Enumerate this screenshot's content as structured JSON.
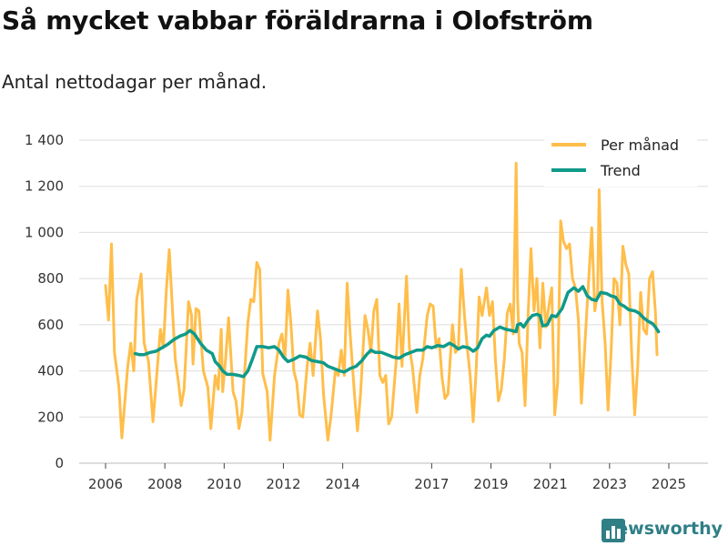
{
  "title": "Så mycket vabbar föräldrarna i Olofström",
  "subtitle": "Antal nettodagar per månad.",
  "brand": "Newsworthy",
  "colors": {
    "monthly": "#ffbe4a",
    "trend": "#0f9a8a",
    "grid": "#dddddd",
    "brand": "#2f7f86"
  },
  "chart_data": {
    "type": "line",
    "title": "Så mycket vabbar föräldrarna i Olofström",
    "subtitle": "Antal nettodagar per månad.",
    "xlabel": "",
    "ylabel": "",
    "xlim": [
      2006,
      2025.8
    ],
    "ylim": [
      0,
      1400
    ],
    "x_ticks": [
      2006,
      2008,
      2010,
      2012,
      2014,
      2017,
      2019,
      2021,
      2023,
      2025
    ],
    "x_tick_labels": [
      "2006",
      "2008",
      "2010",
      "2012",
      "2014",
      "2017",
      "2019",
      "2021",
      "2023",
      "2025"
    ],
    "y_ticks": [
      0,
      200,
      400,
      600,
      800,
      1000,
      1200,
      1400
    ],
    "y_tick_labels": [
      "0",
      "200",
      "400",
      "600",
      "800",
      "1 000",
      "1 200",
      "1 400"
    ],
    "grid": true,
    "legend": "top-right",
    "series": [
      {
        "name": "Per månad",
        "color": "#ffbe4a",
        "points": [
          [
            2006.0,
            770
          ],
          [
            2006.1,
            620
          ],
          [
            2006.2,
            950
          ],
          [
            2006.3,
            480
          ],
          [
            2006.45,
            330
          ],
          [
            2006.55,
            110
          ],
          [
            2006.75,
            420
          ],
          [
            2006.85,
            520
          ],
          [
            2006.95,
            400
          ],
          [
            2007.05,
            710
          ],
          [
            2007.2,
            820
          ],
          [
            2007.3,
            520
          ],
          [
            2007.45,
            440
          ],
          [
            2007.6,
            180
          ],
          [
            2007.7,
            340
          ],
          [
            2007.85,
            580
          ],
          [
            2007.95,
            500
          ],
          [
            2008.05,
            750
          ],
          [
            2008.15,
            925
          ],
          [
            2008.25,
            680
          ],
          [
            2008.35,
            450
          ],
          [
            2008.45,
            360
          ],
          [
            2008.55,
            250
          ],
          [
            2008.65,
            320
          ],
          [
            2008.8,
            700
          ],
          [
            2008.9,
            640
          ],
          [
            2008.95,
            430
          ],
          [
            2009.05,
            670
          ],
          [
            2009.15,
            660
          ],
          [
            2009.3,
            400
          ],
          [
            2009.45,
            330
          ],
          [
            2009.55,
            150
          ],
          [
            2009.7,
            380
          ],
          [
            2009.8,
            320
          ],
          [
            2009.9,
            580
          ],
          [
            2009.95,
            310
          ],
          [
            2010.05,
            450
          ],
          [
            2010.15,
            630
          ],
          [
            2010.3,
            310
          ],
          [
            2010.4,
            270
          ],
          [
            2010.5,
            150
          ],
          [
            2010.6,
            220
          ],
          [
            2010.8,
            610
          ],
          [
            2010.9,
            710
          ],
          [
            2011.0,
            700
          ],
          [
            2011.1,
            870
          ],
          [
            2011.2,
            840
          ],
          [
            2011.3,
            390
          ],
          [
            2011.45,
            310
          ],
          [
            2011.55,
            100
          ],
          [
            2011.7,
            380
          ],
          [
            2011.85,
            520
          ],
          [
            2011.95,
            560
          ],
          [
            2012.05,
            450
          ],
          [
            2012.15,
            750
          ],
          [
            2012.25,
            610
          ],
          [
            2012.35,
            400
          ],
          [
            2012.45,
            350
          ],
          [
            2012.55,
            210
          ],
          [
            2012.65,
            200
          ],
          [
            2012.8,
            420
          ],
          [
            2012.9,
            520
          ],
          [
            2013.0,
            380
          ],
          [
            2013.15,
            660
          ],
          [
            2013.25,
            540
          ],
          [
            2013.35,
            300
          ],
          [
            2013.5,
            100
          ],
          [
            2013.6,
            200
          ],
          [
            2013.75,
            400
          ],
          [
            2013.85,
            380
          ],
          [
            2013.95,
            490
          ],
          [
            2014.05,
            380
          ],
          [
            2014.15,
            780
          ],
          [
            2014.25,
            560
          ],
          [
            2014.4,
            290
          ],
          [
            2014.5,
            140
          ],
          [
            2014.6,
            300
          ],
          [
            2014.75,
            640
          ],
          [
            2014.85,
            580
          ],
          [
            2014.95,
            480
          ],
          [
            2015.05,
            660
          ],
          [
            2015.15,
            710
          ],
          [
            2015.25,
            380
          ],
          [
            2015.35,
            350
          ],
          [
            2015.45,
            380
          ],
          [
            2015.55,
            170
          ],
          [
            2015.65,
            200
          ],
          [
            2015.8,
            440
          ],
          [
            2015.9,
            690
          ],
          [
            2016.0,
            420
          ],
          [
            2016.15,
            810
          ],
          [
            2016.25,
            500
          ],
          [
            2016.35,
            420
          ],
          [
            2016.5,
            220
          ],
          [
            2016.6,
            380
          ],
          [
            2016.7,
            450
          ],
          [
            2016.85,
            640
          ],
          [
            2016.95,
            690
          ],
          [
            2017.05,
            680
          ],
          [
            2017.15,
            500
          ],
          [
            2017.25,
            540
          ],
          [
            2017.35,
            370
          ],
          [
            2017.45,
            280
          ],
          [
            2017.55,
            300
          ],
          [
            2017.7,
            600
          ],
          [
            2017.8,
            480
          ],
          [
            2017.9,
            500
          ],
          [
            2018.0,
            840
          ],
          [
            2018.1,
            650
          ],
          [
            2018.2,
            500
          ],
          [
            2018.3,
            380
          ],
          [
            2018.4,
            180
          ],
          [
            2018.5,
            400
          ],
          [
            2018.6,
            720
          ],
          [
            2018.7,
            640
          ],
          [
            2018.85,
            760
          ],
          [
            2018.95,
            640
          ],
          [
            2019.05,
            700
          ],
          [
            2019.15,
            450
          ],
          [
            2019.25,
            270
          ],
          [
            2019.35,
            320
          ],
          [
            2019.45,
            450
          ],
          [
            2019.55,
            650
          ],
          [
            2019.65,
            690
          ],
          [
            2019.75,
            560
          ],
          [
            2019.85,
            1300
          ],
          [
            2019.9,
            720
          ],
          [
            2019.95,
            520
          ],
          [
            2020.05,
            480
          ],
          [
            2020.15,
            250
          ],
          [
            2020.25,
            640
          ],
          [
            2020.35,
            930
          ],
          [
            2020.45,
            660
          ],
          [
            2020.55,
            800
          ],
          [
            2020.65,
            500
          ],
          [
            2020.75,
            780
          ],
          [
            2020.85,
            590
          ],
          [
            2020.95,
            680
          ],
          [
            2021.05,
            760
          ],
          [
            2021.15,
            210
          ],
          [
            2021.25,
            350
          ],
          [
            2021.35,
            1050
          ],
          [
            2021.45,
            960
          ],
          [
            2021.55,
            930
          ],
          [
            2021.65,
            950
          ],
          [
            2021.75,
            800
          ],
          [
            2021.85,
            760
          ],
          [
            2021.95,
            620
          ],
          [
            2022.05,
            260
          ],
          [
            2022.15,
            480
          ],
          [
            2022.3,
            800
          ],
          [
            2022.4,
            1020
          ],
          [
            2022.5,
            660
          ],
          [
            2022.6,
            740
          ],
          [
            2022.65,
            1185
          ],
          [
            2022.75,
            700
          ],
          [
            2022.85,
            520
          ],
          [
            2022.95,
            230
          ],
          [
            2023.05,
            480
          ],
          [
            2023.15,
            800
          ],
          [
            2023.25,
            780
          ],
          [
            2023.35,
            600
          ],
          [
            2023.45,
            940
          ],
          [
            2023.55,
            860
          ],
          [
            2023.65,
            820
          ],
          [
            2023.75,
            460
          ],
          [
            2023.85,
            210
          ],
          [
            2023.95,
            420
          ],
          [
            2024.05,
            740
          ],
          [
            2024.15,
            580
          ],
          [
            2024.25,
            560
          ],
          [
            2024.35,
            800
          ],
          [
            2024.45,
            830
          ],
          [
            2024.55,
            650
          ],
          [
            2024.6,
            470
          ]
        ]
      },
      {
        "name": "Trend",
        "color": "#0f9a8a",
        "points": [
          [
            2007.0,
            475
          ],
          [
            2007.15,
            470
          ],
          [
            2007.3,
            470
          ],
          [
            2007.5,
            480
          ],
          [
            2007.7,
            485
          ],
          [
            2007.9,
            500
          ],
          [
            2008.1,
            515
          ],
          [
            2008.3,
            535
          ],
          [
            2008.5,
            550
          ],
          [
            2008.7,
            560
          ],
          [
            2008.85,
            575
          ],
          [
            2009.0,
            560
          ],
          [
            2009.2,
            520
          ],
          [
            2009.4,
            490
          ],
          [
            2009.6,
            475
          ],
          [
            2009.7,
            440
          ],
          [
            2009.85,
            420
          ],
          [
            2009.95,
            400
          ],
          [
            2010.1,
            385
          ],
          [
            2010.3,
            385
          ],
          [
            2010.5,
            380
          ],
          [
            2010.65,
            375
          ],
          [
            2010.8,
            400
          ],
          [
            2010.95,
            450
          ],
          [
            2011.1,
            505
          ],
          [
            2011.3,
            505
          ],
          [
            2011.5,
            500
          ],
          [
            2011.7,
            505
          ],
          [
            2011.85,
            490
          ],
          [
            2012.0,
            460
          ],
          [
            2012.15,
            440
          ],
          [
            2012.35,
            450
          ],
          [
            2012.55,
            465
          ],
          [
            2012.75,
            460
          ],
          [
            2012.95,
            445
          ],
          [
            2013.15,
            440
          ],
          [
            2013.35,
            435
          ],
          [
            2013.5,
            420
          ],
          [
            2013.7,
            410
          ],
          [
            2013.9,
            400
          ],
          [
            2014.05,
            395
          ],
          [
            2014.25,
            410
          ],
          [
            2014.45,
            420
          ],
          [
            2014.65,
            445
          ],
          [
            2014.8,
            470
          ],
          [
            2014.95,
            490
          ],
          [
            2015.1,
            480
          ],
          [
            2015.3,
            480
          ],
          [
            2015.5,
            470
          ],
          [
            2015.7,
            460
          ],
          [
            2015.9,
            455
          ],
          [
            2016.1,
            470
          ],
          [
            2016.3,
            480
          ],
          [
            2016.5,
            490
          ],
          [
            2016.7,
            490
          ],
          [
            2016.85,
            505
          ],
          [
            2017.0,
            500
          ],
          [
            2017.2,
            510
          ],
          [
            2017.4,
            505
          ],
          [
            2017.6,
            520
          ],
          [
            2017.75,
            510
          ],
          [
            2017.9,
            495
          ],
          [
            2018.05,
            505
          ],
          [
            2018.25,
            500
          ],
          [
            2018.4,
            485
          ],
          [
            2018.55,
            500
          ],
          [
            2018.7,
            540
          ],
          [
            2018.85,
            555
          ],
          [
            2018.95,
            550
          ],
          [
            2019.1,
            575
          ],
          [
            2019.3,
            590
          ],
          [
            2019.5,
            580
          ],
          [
            2019.7,
            575
          ],
          [
            2019.85,
            570
          ],
          [
            2019.9,
            600
          ],
          [
            2020.0,
            605
          ],
          [
            2020.1,
            590
          ],
          [
            2020.25,
            620
          ],
          [
            2020.4,
            640
          ],
          [
            2020.55,
            645
          ],
          [
            2020.65,
            640
          ],
          [
            2020.75,
            595
          ],
          [
            2020.9,
            600
          ],
          [
            2021.05,
            640
          ],
          [
            2021.2,
            635
          ],
          [
            2021.4,
            670
          ],
          [
            2021.6,
            740
          ],
          [
            2021.8,
            760
          ],
          [
            2021.95,
            745
          ],
          [
            2022.1,
            765
          ],
          [
            2022.25,
            725
          ],
          [
            2022.4,
            710
          ],
          [
            2022.55,
            705
          ],
          [
            2022.7,
            740
          ],
          [
            2022.9,
            735
          ],
          [
            2023.05,
            725
          ],
          [
            2023.2,
            720
          ],
          [
            2023.35,
            690
          ],
          [
            2023.5,
            680
          ],
          [
            2023.65,
            665
          ],
          [
            2023.85,
            660
          ],
          [
            2024.0,
            650
          ],
          [
            2024.15,
            630
          ],
          [
            2024.3,
            615
          ],
          [
            2024.45,
            605
          ],
          [
            2024.55,
            590
          ],
          [
            2024.65,
            570
          ]
        ]
      }
    ]
  }
}
